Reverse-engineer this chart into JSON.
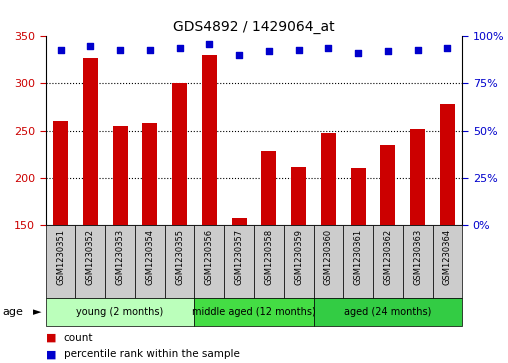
{
  "title": "GDS4892 / 1429064_at",
  "samples": [
    "GSM1230351",
    "GSM1230352",
    "GSM1230353",
    "GSM1230354",
    "GSM1230355",
    "GSM1230356",
    "GSM1230357",
    "GSM1230358",
    "GSM1230359",
    "GSM1230360",
    "GSM1230361",
    "GSM1230362",
    "GSM1230363",
    "GSM1230364"
  ],
  "counts": [
    260,
    327,
    255,
    258,
    300,
    330,
    157,
    228,
    211,
    248,
    210,
    235,
    252,
    278
  ],
  "percentiles": [
    93,
    95,
    93,
    93,
    94,
    96,
    90,
    92,
    93,
    94,
    91,
    92,
    93,
    94
  ],
  "ylim_left": [
    150,
    350
  ],
  "ylim_right": [
    0,
    100
  ],
  "yticks_left": [
    150,
    200,
    250,
    300,
    350
  ],
  "yticks_right": [
    0,
    25,
    50,
    75,
    100
  ],
  "hlines": [
    200,
    250,
    300
  ],
  "bar_color": "#cc0000",
  "scatter_color": "#0000cc",
  "groups": [
    {
      "label": "young (2 months)",
      "start": 0,
      "end": 5,
      "color": "#bbffbb"
    },
    {
      "label": "middle aged (12 months)",
      "start": 5,
      "end": 9,
      "color": "#44dd44"
    },
    {
      "label": "aged (24 months)",
      "start": 9,
      "end": 14,
      "color": "#33cc44"
    }
  ],
  "age_label": "age",
  "legend_count_label": "count",
  "legend_percentile_label": "percentile rank within the sample",
  "background_color": "#ffffff",
  "plot_bg": "#ffffff",
  "tick_label_color_left": "#cc0000",
  "tick_label_color_right": "#0000cc",
  "sample_box_color": "#cccccc",
  "bar_width": 0.5
}
